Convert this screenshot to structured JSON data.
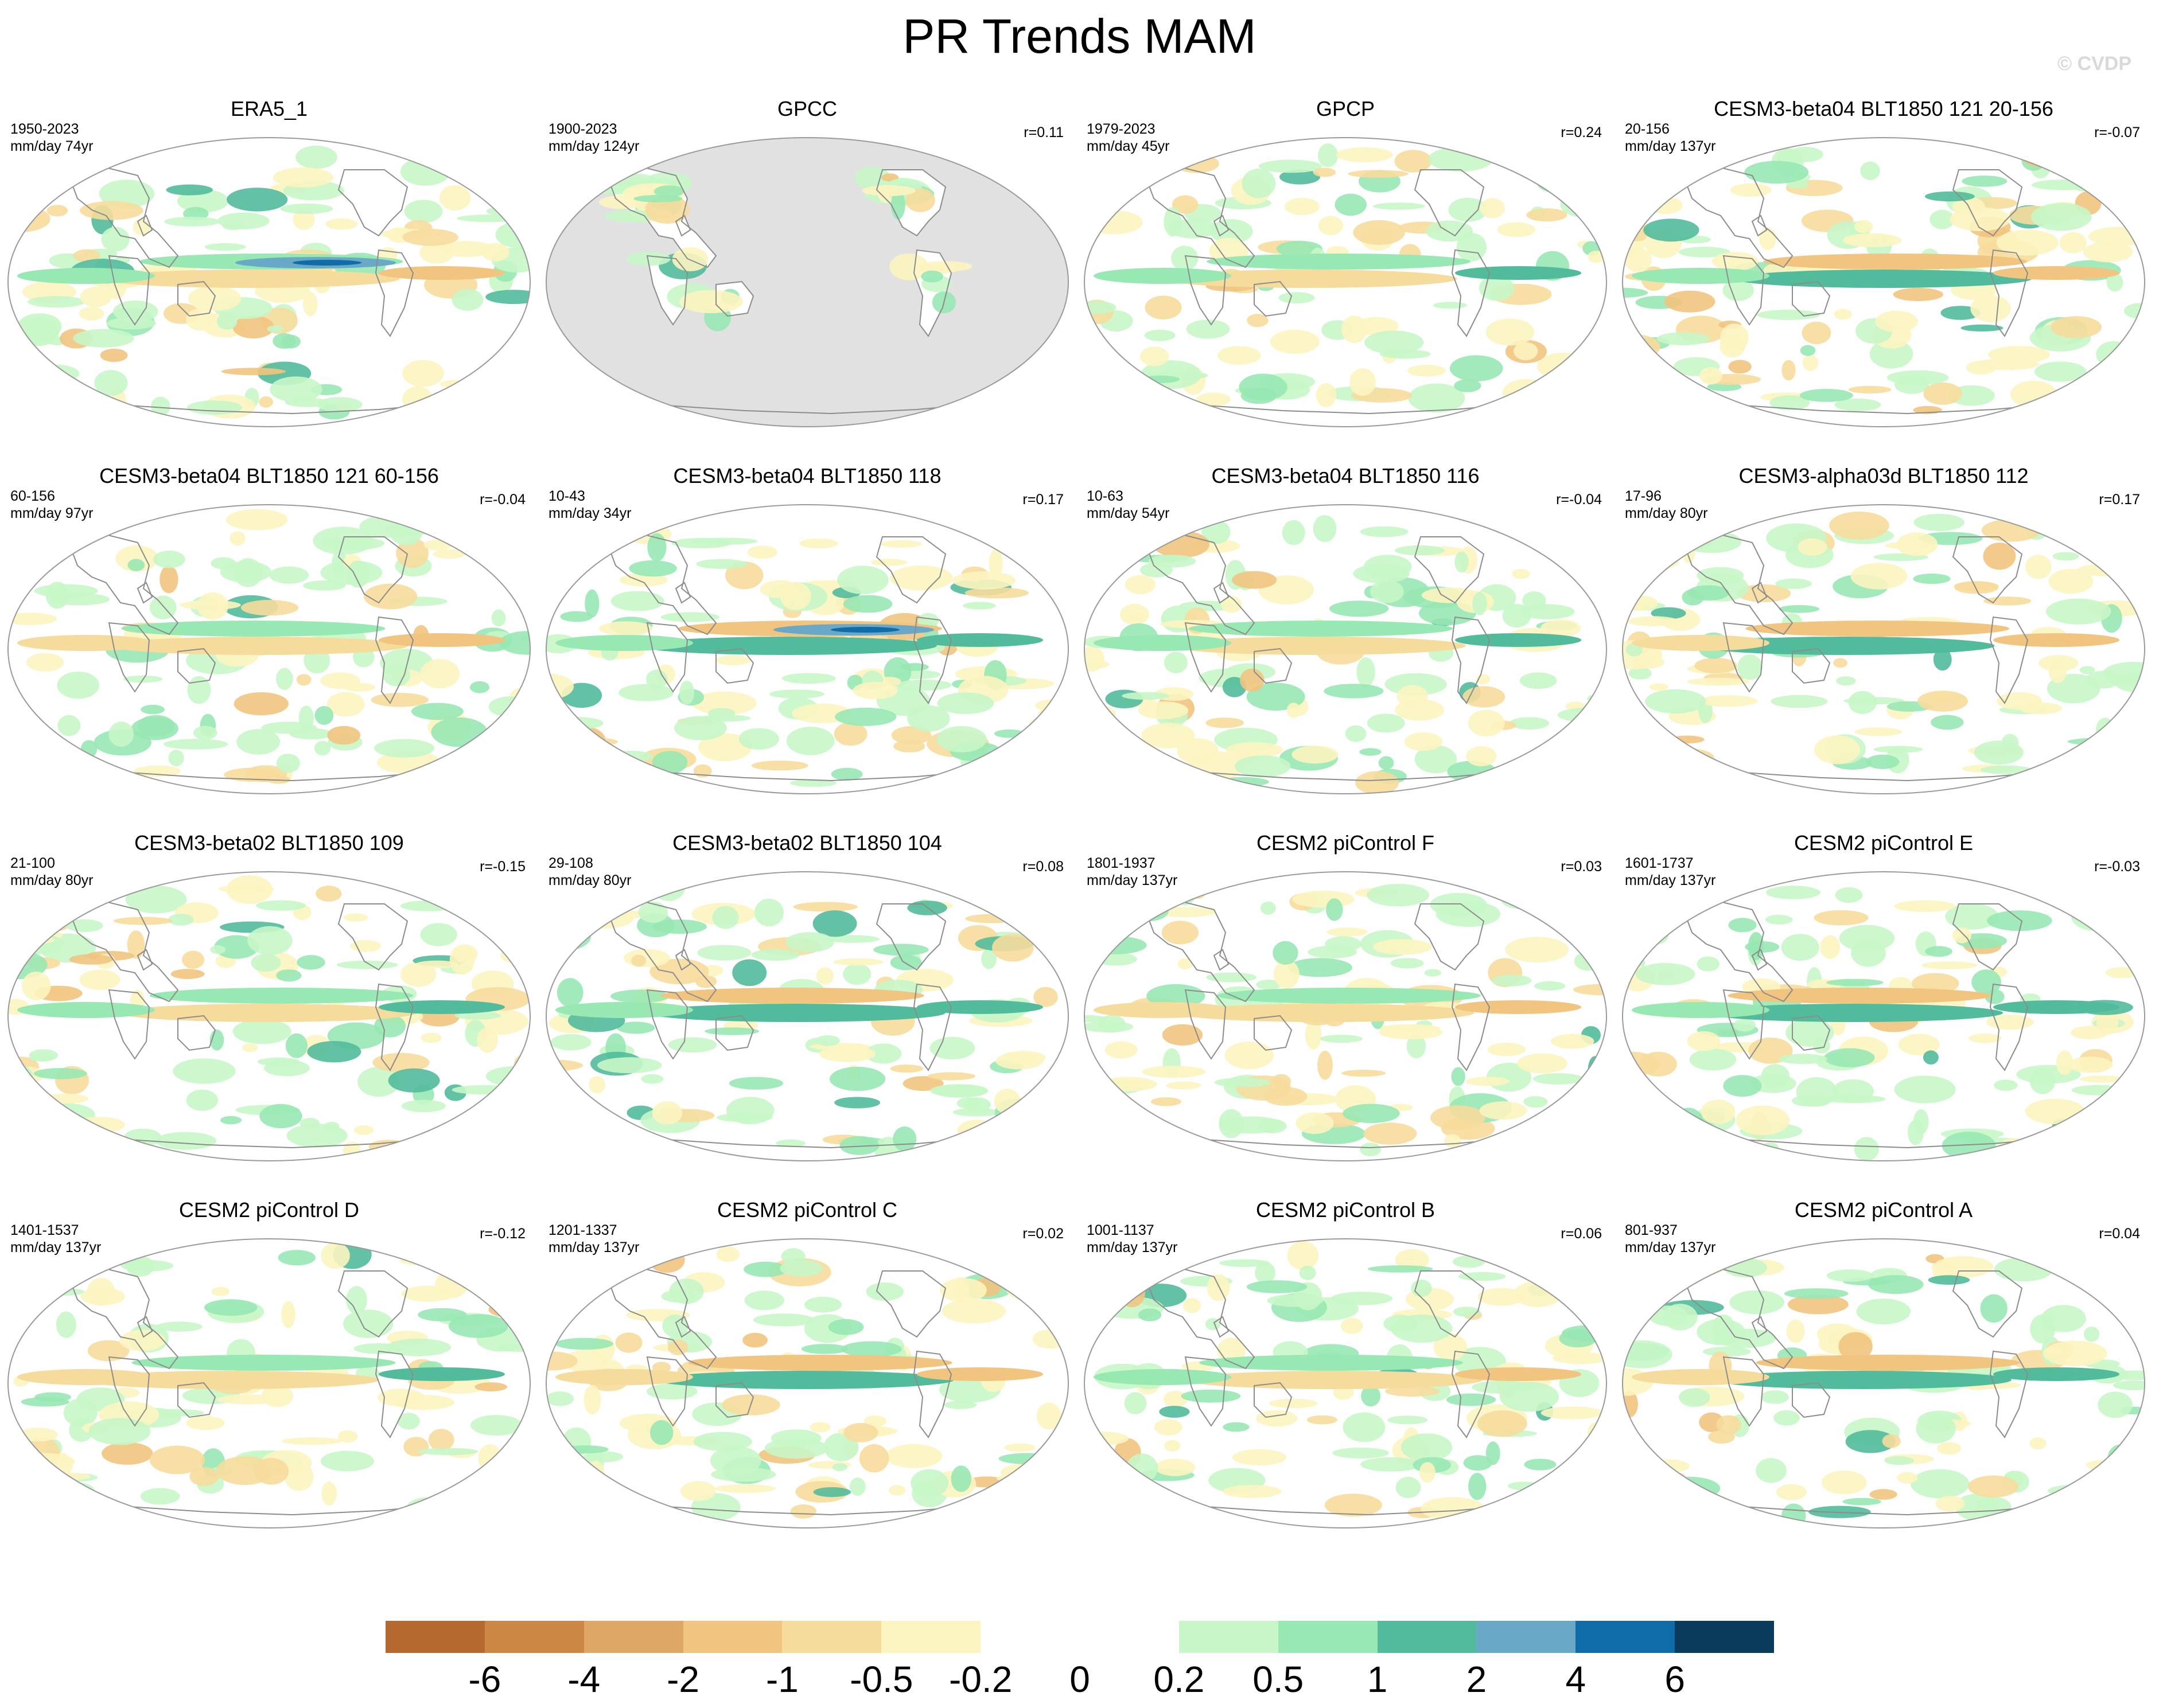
{
  "title": "PR Trends MAM",
  "watermark": "© CVDP",
  "panels": [
    {
      "title": "ERA5_1",
      "years": "1950-2023",
      "units": "mm/day 74yr",
      "r": ""
    },
    {
      "title": "GPCC",
      "years": "1900-2023",
      "units": "mm/day 124yr",
      "r": "r=0.11"
    },
    {
      "title": "GPCP",
      "years": "1979-2023",
      "units": "mm/day 45yr",
      "r": "r=0.24"
    },
    {
      "title": "CESM3-beta04 BLT1850 121 20-156",
      "years": "20-156",
      "units": "mm/day 137yr",
      "r": "r=-0.07"
    },
    {
      "title": "CESM3-beta04 BLT1850 121 60-156",
      "years": "60-156",
      "units": "mm/day 97yr",
      "r": "r=-0.04"
    },
    {
      "title": "CESM3-beta04 BLT1850 118",
      "years": "10-43",
      "units": "mm/day 34yr",
      "r": "r=0.17"
    },
    {
      "title": "CESM3-beta04 BLT1850 116",
      "years": "10-63",
      "units": "mm/day 54yr",
      "r": "r=-0.04"
    },
    {
      "title": "CESM3-alpha03d BLT1850 112",
      "years": "17-96",
      "units": "mm/day 80yr",
      "r": "r=0.17"
    },
    {
      "title": "CESM3-beta02 BLT1850 109",
      "years": "21-100",
      "units": "mm/day 80yr",
      "r": "r=-0.15"
    },
    {
      "title": "CESM3-beta02 BLT1850 104",
      "years": "29-108",
      "units": "mm/day 80yr",
      "r": "r=0.08"
    },
    {
      "title": "CESM2 piControl F",
      "years": "1801-1937",
      "units": "mm/day 137yr",
      "r": "r=0.03"
    },
    {
      "title": "CESM2 piControl E",
      "years": "1601-1737",
      "units": "mm/day 137yr",
      "r": "r=-0.03"
    },
    {
      "title": "CESM2 piControl D",
      "years": "1401-1537",
      "units": "mm/day 137yr",
      "r": "r=-0.12"
    },
    {
      "title": "CESM2 piControl C",
      "years": "1201-1337",
      "units": "mm/day 137yr",
      "r": "r=0.02"
    },
    {
      "title": "CESM2 piControl B",
      "years": "1001-1137",
      "units": "mm/day 137yr",
      "r": "r=0.06"
    },
    {
      "title": "CESM2 piControl A",
      "years": "801-937",
      "units": "mm/day 137yr",
      "r": "r=0.04"
    }
  ],
  "colorbar": {
    "colors": [
      "#b5692e",
      "#cc8744",
      "#dfa765",
      "#f1c47f",
      "#f6dc9c",
      "#fcf4c0",
      "#ffffff",
      "#ffffff",
      "#c8f6c8",
      "#98e8b4",
      "#52bb9c",
      "#6aa8c7",
      "#0f6ca8",
      "#0a3b5c"
    ],
    "labels": [
      "-6",
      "-4",
      "-2",
      "-1",
      "-0.5",
      "-0.2",
      "0",
      "0.2",
      "0.5",
      "1",
      "2",
      "4",
      "6"
    ]
  }
}
